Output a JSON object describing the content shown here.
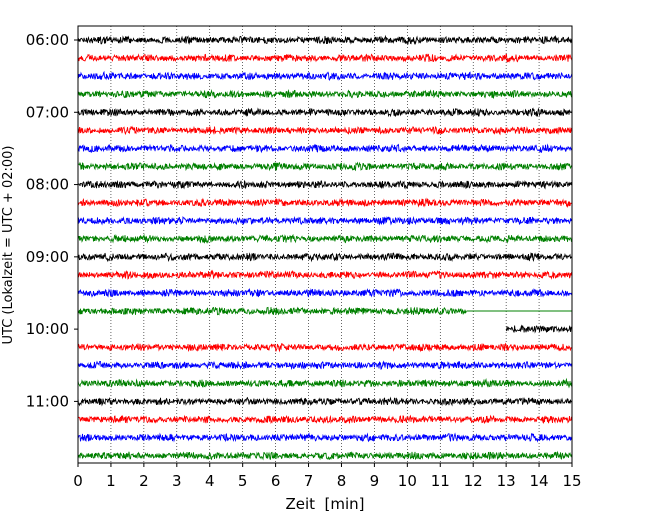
{
  "chart_data": {
    "type": "line",
    "title": "",
    "xlabel": "Zeit  [min]",
    "ylabel": "UTC (Lokalzeit = UTC + 02:00)",
    "xlim": [
      0,
      15
    ],
    "x_ticks": [
      "0",
      "1",
      "2",
      "3",
      "4",
      "5",
      "6",
      "7",
      "8",
      "9",
      "10",
      "11",
      "12",
      "13",
      "14",
      "15"
    ],
    "y_ticks": [
      "06:00",
      "07:00",
      "08:00",
      "09:00",
      "10:00",
      "11:00"
    ],
    "grid": "vertical dotted",
    "color_cycle": [
      "#000000",
      "#ff0000",
      "#0000ff",
      "#008000"
    ],
    "trace_interval_min": 15,
    "start_time": "06:00",
    "traces": [
      {
        "time": "06:00",
        "color": "#000000",
        "data_start_min": 0,
        "data_end_min": 15
      },
      {
        "time": "06:15",
        "color": "#ff0000",
        "data_start_min": 0,
        "data_end_min": 15
      },
      {
        "time": "06:30",
        "color": "#0000ff",
        "data_start_min": 0,
        "data_end_min": 15
      },
      {
        "time": "06:45",
        "color": "#008000",
        "data_start_min": 0,
        "data_end_min": 15
      },
      {
        "time": "07:00",
        "color": "#000000",
        "data_start_min": 0,
        "data_end_min": 15
      },
      {
        "time": "07:15",
        "color": "#ff0000",
        "data_start_min": 0,
        "data_end_min": 15
      },
      {
        "time": "07:30",
        "color": "#0000ff",
        "data_start_min": 0,
        "data_end_min": 15
      },
      {
        "time": "07:45",
        "color": "#008000",
        "data_start_min": 0,
        "data_end_min": 15
      },
      {
        "time": "08:00",
        "color": "#000000",
        "data_start_min": 0,
        "data_end_min": 15
      },
      {
        "time": "08:15",
        "color": "#ff0000",
        "data_start_min": 0,
        "data_end_min": 15
      },
      {
        "time": "08:30",
        "color": "#0000ff",
        "data_start_min": 0,
        "data_end_min": 15
      },
      {
        "time": "08:45",
        "color": "#008000",
        "data_start_min": 0,
        "data_end_min": 15
      },
      {
        "time": "09:00",
        "color": "#000000",
        "data_start_min": 0,
        "data_end_min": 15
      },
      {
        "time": "09:15",
        "color": "#ff0000",
        "data_start_min": 0,
        "data_end_min": 15
      },
      {
        "time": "09:30",
        "color": "#0000ff",
        "data_start_min": 0,
        "data_end_min": 15
      },
      {
        "time": "09:45",
        "color": "#008000",
        "data_start_min": 0,
        "data_end_min": 11.8
      },
      {
        "time": "10:00",
        "color": "#000000",
        "data_start_min": 13.0,
        "data_end_min": 15
      },
      {
        "time": "10:15",
        "color": "#ff0000",
        "data_start_min": 0,
        "data_end_min": 15
      },
      {
        "time": "10:30",
        "color": "#0000ff",
        "data_start_min": 0,
        "data_end_min": 15
      },
      {
        "time": "10:45",
        "color": "#008000",
        "data_start_min": 0,
        "data_end_min": 15
      },
      {
        "time": "11:00",
        "color": "#000000",
        "data_start_min": 0,
        "data_end_min": 15
      },
      {
        "time": "11:15",
        "color": "#ff0000",
        "data_start_min": 0,
        "data_end_min": 15
      },
      {
        "time": "11:30",
        "color": "#0000ff",
        "data_start_min": 0,
        "data_end_min": 15
      },
      {
        "time": "11:45",
        "color": "#008000",
        "data_start_min": 0,
        "data_end_min": 15
      }
    ]
  }
}
